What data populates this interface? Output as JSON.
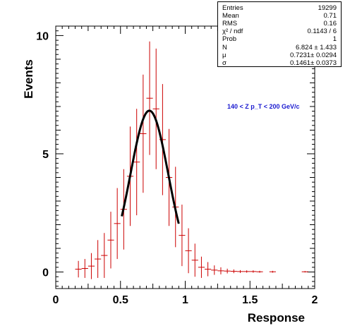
{
  "chart_data": {
    "type": "histogram",
    "xlabel": "Response",
    "ylabel": "Events",
    "xlim": [
      0,
      2
    ],
    "ylim": [
      -0.7,
      10.4
    ],
    "x_ticks": [
      "0",
      "0.5",
      "1",
      "1.5",
      "2"
    ],
    "y_ticks": [
      "0",
      "5",
      "10"
    ],
    "annotation": "140 < Z p_T < 200 GeV/c",
    "bin_width": 0.05,
    "data_color": "#cc0000",
    "fit_color": "#000000",
    "points": [
      {
        "x": 0.175,
        "y": 0.12,
        "err": 0.35
      },
      {
        "x": 0.225,
        "y": 0.15,
        "err": 0.4
      },
      {
        "x": 0.275,
        "y": 0.25,
        "err": 0.55
      },
      {
        "x": 0.325,
        "y": 0.55,
        "err": 0.8
      },
      {
        "x": 0.375,
        "y": 0.7,
        "err": 0.95
      },
      {
        "x": 0.425,
        "y": 1.35,
        "err": 1.2
      },
      {
        "x": 0.475,
        "y": 2.05,
        "err": 1.5
      },
      {
        "x": 0.525,
        "y": 2.65,
        "err": 1.7
      },
      {
        "x": 0.575,
        "y": 4.05,
        "err": 2.1
      },
      {
        "x": 0.625,
        "y": 4.65,
        "err": 2.25
      },
      {
        "x": 0.675,
        "y": 5.85,
        "err": 2.5
      },
      {
        "x": 0.725,
        "y": 7.35,
        "err": 2.4
      },
      {
        "x": 0.775,
        "y": 6.9,
        "err": 2.55
      },
      {
        "x": 0.825,
        "y": 5.6,
        "err": 2.35
      },
      {
        "x": 0.875,
        "y": 4.0,
        "err": 2.05
      },
      {
        "x": 0.925,
        "y": 2.75,
        "err": 1.7
      },
      {
        "x": 0.975,
        "y": 1.55,
        "err": 1.3
      },
      {
        "x": 1.025,
        "y": 0.9,
        "err": 0.95
      },
      {
        "x": 1.075,
        "y": 0.5,
        "err": 0.7
      },
      {
        "x": 1.125,
        "y": 0.2,
        "err": 0.45
      },
      {
        "x": 1.175,
        "y": 0.12,
        "err": 0.3
      },
      {
        "x": 1.225,
        "y": 0.08,
        "err": 0.2
      },
      {
        "x": 1.275,
        "y": 0.05,
        "err": 0.15
      },
      {
        "x": 1.325,
        "y": 0.04,
        "err": 0.1
      },
      {
        "x": 1.375,
        "y": 0.03,
        "err": 0.08
      },
      {
        "x": 1.425,
        "y": 0.02,
        "err": 0.06
      },
      {
        "x": 1.475,
        "y": 0.02,
        "err": 0.05
      },
      {
        "x": 1.525,
        "y": 0.02,
        "err": 0.05
      },
      {
        "x": 1.575,
        "y": 0.01,
        "err": 0.04
      },
      {
        "x": 1.675,
        "y": 0.01,
        "err": 0.04
      },
      {
        "x": 1.925,
        "y": 0.01,
        "err": 0.03
      }
    ],
    "fit": {
      "function": "gaus",
      "N": 6.824,
      "mu": 0.7231,
      "sigma": 0.1461,
      "range": [
        0.51,
        0.95
      ]
    }
  },
  "stats": [
    {
      "key": "Entries",
      "value": "19299"
    },
    {
      "key": "Mean",
      "value": "0.71"
    },
    {
      "key": "RMS",
      "value": "0.16"
    },
    {
      "key": "χ² / ndf",
      "value": "0.1143 / 6"
    },
    {
      "key": "Prob",
      "value": "1"
    },
    {
      "key": "N",
      "value": "6.824 ± 1.433"
    },
    {
      "key": "μ",
      "value": "0.7231± 0.0294"
    },
    {
      "key": "σ",
      "value": "0.1461± 0.0373"
    }
  ]
}
